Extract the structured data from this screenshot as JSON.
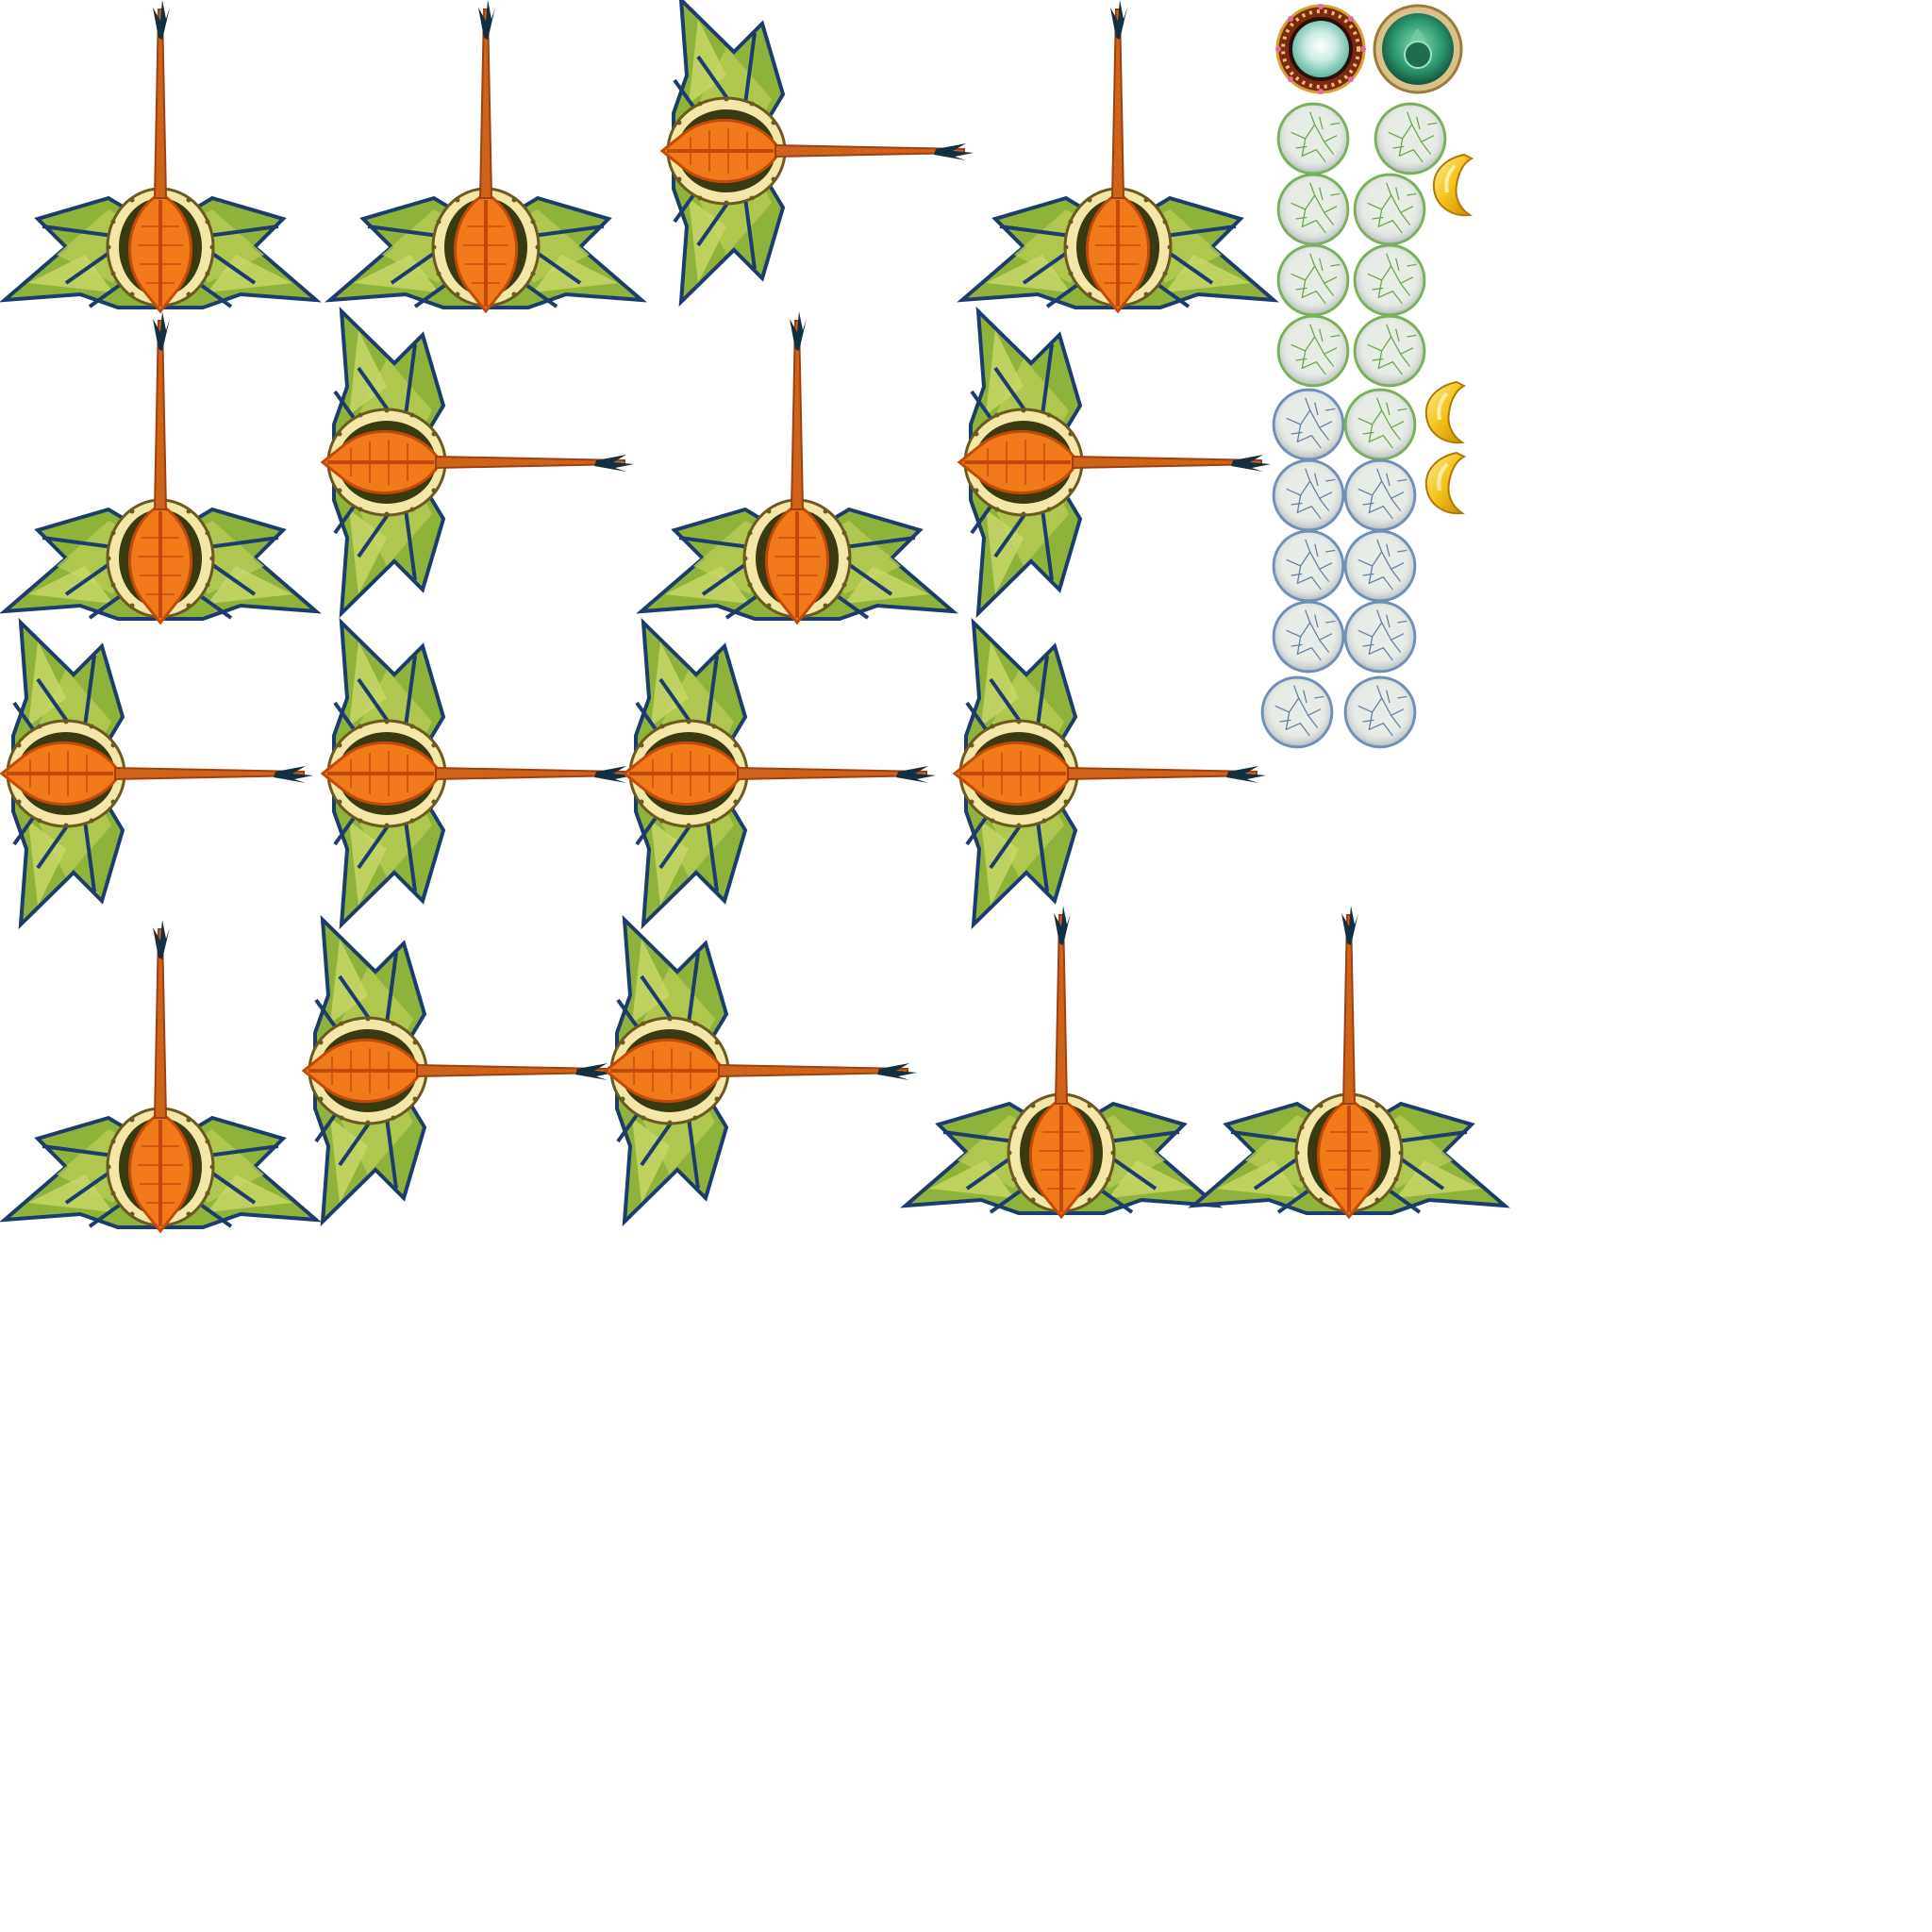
{
  "sheet": {
    "background": "#ffffff",
    "colors": {
      "fin_green": "#8fb23a",
      "fin_light": "#c9d86a",
      "fin_rib": "#1c3c6e",
      "body_orange": "#f07a1a",
      "body_dark": "#c24a08",
      "bead": "#f3e7a8",
      "bead_edge": "#6b5a20",
      "tail_tip": "#12303f",
      "orb_green_ring": "#79b05a",
      "orb_blue_ring": "#6f8fb8",
      "orb_fill": "#e8ece6",
      "ingot_gold": "#f4c21a"
    },
    "sprites": {
      "creature_frames": [
        {
          "pose": "tail-up"
        },
        {
          "pose": "tail-up"
        },
        {
          "pose": "tail-right"
        },
        {
          "pose": "tail-up"
        },
        {
          "pose": "tail-up"
        },
        {
          "pose": "tail-right"
        },
        {
          "pose": "tail-up"
        },
        {
          "pose": "tail-right"
        },
        {
          "pose": "tail-right"
        },
        {
          "pose": "tail-right"
        },
        {
          "pose": "tail-right"
        },
        {
          "pose": "tail-right"
        },
        {
          "pose": "tail-up"
        },
        {
          "pose": "tail-right"
        },
        {
          "pose": "tail-right"
        },
        {
          "pose": "tail-up"
        },
        {
          "pose": "tail-up"
        }
      ],
      "ui_buttons": [
        {
          "icon": "ornate-jade-button-icon"
        },
        {
          "icon": "green-lotus-button-icon"
        }
      ],
      "orbs": [
        {
          "tint": "green"
        },
        {
          "tint": "green"
        },
        {
          "tint": "green"
        },
        {
          "tint": "green"
        },
        {
          "tint": "green"
        },
        {
          "tint": "green"
        },
        {
          "tint": "green"
        },
        {
          "tint": "green"
        },
        {
          "tint": "blue"
        },
        {
          "tint": "green"
        },
        {
          "tint": "blue"
        },
        {
          "tint": "blue"
        },
        {
          "tint": "blue"
        },
        {
          "tint": "blue"
        },
        {
          "tint": "blue"
        },
        {
          "tint": "blue"
        },
        {
          "tint": "blue"
        },
        {
          "tint": "blue"
        }
      ],
      "ingots": [
        {
          "icon": "gold-ingot-icon"
        },
        {
          "icon": "gold-ingot-icon"
        },
        {
          "icon": "gold-ingot-icon"
        }
      ]
    }
  }
}
